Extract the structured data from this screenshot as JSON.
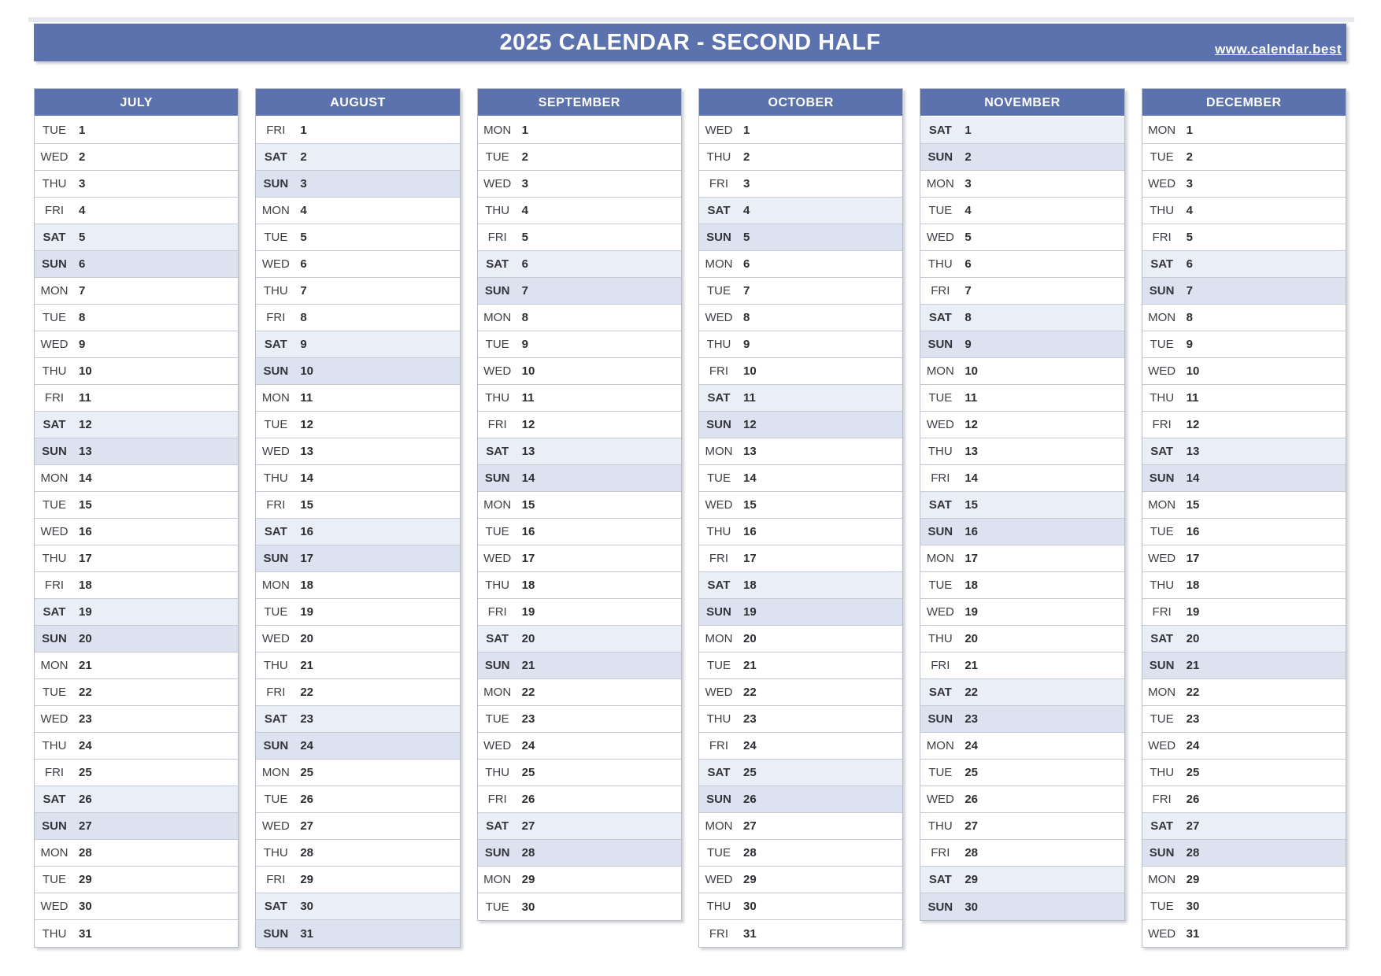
{
  "page": {
    "title": "2025 CALENDAR - SECOND HALF",
    "website": "www.calendar.best"
  },
  "colors": {
    "header_blue": "#5b72ae",
    "saturday_bg": "#eaeef7",
    "sunday_bg": "#dce2f0",
    "row_border": "#c6cad2",
    "table_border": "#b7bcc6",
    "title_text": "#ffffff"
  },
  "months": [
    {
      "name": "JULY",
      "rows": [
        {
          "dow": "TUE",
          "day": "1"
        },
        {
          "dow": "WED",
          "day": "2"
        },
        {
          "dow": "THU",
          "day": "3"
        },
        {
          "dow": "FRI",
          "day": "4"
        },
        {
          "dow": "SAT",
          "day": "5"
        },
        {
          "dow": "SUN",
          "day": "6"
        },
        {
          "dow": "MON",
          "day": "7"
        },
        {
          "dow": "TUE",
          "day": "8"
        },
        {
          "dow": "WED",
          "day": "9"
        },
        {
          "dow": "THU",
          "day": "10"
        },
        {
          "dow": "FRI",
          "day": "11"
        },
        {
          "dow": "SAT",
          "day": "12"
        },
        {
          "dow": "SUN",
          "day": "13"
        },
        {
          "dow": "MON",
          "day": "14"
        },
        {
          "dow": "TUE",
          "day": "15"
        },
        {
          "dow": "WED",
          "day": "16"
        },
        {
          "dow": "THU",
          "day": "17"
        },
        {
          "dow": "FRI",
          "day": "18"
        },
        {
          "dow": "SAT",
          "day": "19"
        },
        {
          "dow": "SUN",
          "day": "20"
        },
        {
          "dow": "MON",
          "day": "21"
        },
        {
          "dow": "TUE",
          "day": "22"
        },
        {
          "dow": "WED",
          "day": "23"
        },
        {
          "dow": "THU",
          "day": "24"
        },
        {
          "dow": "FRI",
          "day": "25"
        },
        {
          "dow": "SAT",
          "day": "26"
        },
        {
          "dow": "SUN",
          "day": "27"
        },
        {
          "dow": "MON",
          "day": "28"
        },
        {
          "dow": "TUE",
          "day": "29"
        },
        {
          "dow": "WED",
          "day": "30"
        },
        {
          "dow": "THU",
          "day": "31"
        }
      ]
    },
    {
      "name": "AUGUST",
      "rows": [
        {
          "dow": "FRI",
          "day": "1"
        },
        {
          "dow": "SAT",
          "day": "2"
        },
        {
          "dow": "SUN",
          "day": "3"
        },
        {
          "dow": "MON",
          "day": "4"
        },
        {
          "dow": "TUE",
          "day": "5"
        },
        {
          "dow": "WED",
          "day": "6"
        },
        {
          "dow": "THU",
          "day": "7"
        },
        {
          "dow": "FRI",
          "day": "8"
        },
        {
          "dow": "SAT",
          "day": "9"
        },
        {
          "dow": "SUN",
          "day": "10"
        },
        {
          "dow": "MON",
          "day": "11"
        },
        {
          "dow": "TUE",
          "day": "12"
        },
        {
          "dow": "WED",
          "day": "13"
        },
        {
          "dow": "THU",
          "day": "14"
        },
        {
          "dow": "FRI",
          "day": "15"
        },
        {
          "dow": "SAT",
          "day": "16"
        },
        {
          "dow": "SUN",
          "day": "17"
        },
        {
          "dow": "MON",
          "day": "18"
        },
        {
          "dow": "TUE",
          "day": "19"
        },
        {
          "dow": "WED",
          "day": "20"
        },
        {
          "dow": "THU",
          "day": "21"
        },
        {
          "dow": "FRI",
          "day": "22"
        },
        {
          "dow": "SAT",
          "day": "23"
        },
        {
          "dow": "SUN",
          "day": "24"
        },
        {
          "dow": "MON",
          "day": "25"
        },
        {
          "dow": "TUE",
          "day": "26"
        },
        {
          "dow": "WED",
          "day": "27"
        },
        {
          "dow": "THU",
          "day": "28"
        },
        {
          "dow": "FRI",
          "day": "29"
        },
        {
          "dow": "SAT",
          "day": "30"
        },
        {
          "dow": "SUN",
          "day": "31"
        }
      ]
    },
    {
      "name": "SEPTEMBER",
      "rows": [
        {
          "dow": "MON",
          "day": "1"
        },
        {
          "dow": "TUE",
          "day": "2"
        },
        {
          "dow": "WED",
          "day": "3"
        },
        {
          "dow": "THU",
          "day": "4"
        },
        {
          "dow": "FRI",
          "day": "5"
        },
        {
          "dow": "SAT",
          "day": "6"
        },
        {
          "dow": "SUN",
          "day": "7"
        },
        {
          "dow": "MON",
          "day": "8"
        },
        {
          "dow": "TUE",
          "day": "9"
        },
        {
          "dow": "WED",
          "day": "10"
        },
        {
          "dow": "THU",
          "day": "11"
        },
        {
          "dow": "FRI",
          "day": "12"
        },
        {
          "dow": "SAT",
          "day": "13"
        },
        {
          "dow": "SUN",
          "day": "14"
        },
        {
          "dow": "MON",
          "day": "15"
        },
        {
          "dow": "TUE",
          "day": "16"
        },
        {
          "dow": "WED",
          "day": "17"
        },
        {
          "dow": "THU",
          "day": "18"
        },
        {
          "dow": "FRI",
          "day": "19"
        },
        {
          "dow": "SAT",
          "day": "20"
        },
        {
          "dow": "SUN",
          "day": "21"
        },
        {
          "dow": "MON",
          "day": "22"
        },
        {
          "dow": "TUE",
          "day": "23"
        },
        {
          "dow": "WED",
          "day": "24"
        },
        {
          "dow": "THU",
          "day": "25"
        },
        {
          "dow": "FRI",
          "day": "26"
        },
        {
          "dow": "SAT",
          "day": "27"
        },
        {
          "dow": "SUN",
          "day": "28"
        },
        {
          "dow": "MON",
          "day": "29"
        },
        {
          "dow": "TUE",
          "day": "30"
        }
      ]
    },
    {
      "name": "OCTOBER",
      "rows": [
        {
          "dow": "WED",
          "day": "1"
        },
        {
          "dow": "THU",
          "day": "2"
        },
        {
          "dow": "FRI",
          "day": "3"
        },
        {
          "dow": "SAT",
          "day": "4"
        },
        {
          "dow": "SUN",
          "day": "5"
        },
        {
          "dow": "MON",
          "day": "6"
        },
        {
          "dow": "TUE",
          "day": "7"
        },
        {
          "dow": "WED",
          "day": "8"
        },
        {
          "dow": "THU",
          "day": "9"
        },
        {
          "dow": "FRI",
          "day": "10"
        },
        {
          "dow": "SAT",
          "day": "11"
        },
        {
          "dow": "SUN",
          "day": "12"
        },
        {
          "dow": "MON",
          "day": "13"
        },
        {
          "dow": "TUE",
          "day": "14"
        },
        {
          "dow": "WED",
          "day": "15"
        },
        {
          "dow": "THU",
          "day": "16"
        },
        {
          "dow": "FRI",
          "day": "17"
        },
        {
          "dow": "SAT",
          "day": "18"
        },
        {
          "dow": "SUN",
          "day": "19"
        },
        {
          "dow": "MON",
          "day": "20"
        },
        {
          "dow": "TUE",
          "day": "21"
        },
        {
          "dow": "WED",
          "day": "22"
        },
        {
          "dow": "THU",
          "day": "23"
        },
        {
          "dow": "FRI",
          "day": "24"
        },
        {
          "dow": "SAT",
          "day": "25"
        },
        {
          "dow": "SUN",
          "day": "26"
        },
        {
          "dow": "MON",
          "day": "27"
        },
        {
          "dow": "TUE",
          "day": "28"
        },
        {
          "dow": "WED",
          "day": "29"
        },
        {
          "dow": "THU",
          "day": "30"
        },
        {
          "dow": "FRI",
          "day": "31"
        }
      ]
    },
    {
      "name": "NOVEMBER",
      "rows": [
        {
          "dow": "SAT",
          "day": "1"
        },
        {
          "dow": "SUN",
          "day": "2"
        },
        {
          "dow": "MON",
          "day": "3"
        },
        {
          "dow": "TUE",
          "day": "4"
        },
        {
          "dow": "WED",
          "day": "5"
        },
        {
          "dow": "THU",
          "day": "6"
        },
        {
          "dow": "FRI",
          "day": "7"
        },
        {
          "dow": "SAT",
          "day": "8"
        },
        {
          "dow": "SUN",
          "day": "9"
        },
        {
          "dow": "MON",
          "day": "10"
        },
        {
          "dow": "TUE",
          "day": "11"
        },
        {
          "dow": "WED",
          "day": "12"
        },
        {
          "dow": "THU",
          "day": "13"
        },
        {
          "dow": "FRI",
          "day": "14"
        },
        {
          "dow": "SAT",
          "day": "15"
        },
        {
          "dow": "SUN",
          "day": "16"
        },
        {
          "dow": "MON",
          "day": "17"
        },
        {
          "dow": "TUE",
          "day": "18"
        },
        {
          "dow": "WED",
          "day": "19"
        },
        {
          "dow": "THU",
          "day": "20"
        },
        {
          "dow": "FRI",
          "day": "21"
        },
        {
          "dow": "SAT",
          "day": "22"
        },
        {
          "dow": "SUN",
          "day": "23"
        },
        {
          "dow": "MON",
          "day": "24"
        },
        {
          "dow": "TUE",
          "day": "25"
        },
        {
          "dow": "WED",
          "day": "26"
        },
        {
          "dow": "THU",
          "day": "27"
        },
        {
          "dow": "FRI",
          "day": "28"
        },
        {
          "dow": "SAT",
          "day": "29"
        },
        {
          "dow": "SUN",
          "day": "30"
        }
      ]
    },
    {
      "name": "DECEMBER",
      "rows": [
        {
          "dow": "MON",
          "day": "1"
        },
        {
          "dow": "TUE",
          "day": "2"
        },
        {
          "dow": "WED",
          "day": "3"
        },
        {
          "dow": "THU",
          "day": "4"
        },
        {
          "dow": "FRI",
          "day": "5"
        },
        {
          "dow": "SAT",
          "day": "6"
        },
        {
          "dow": "SUN",
          "day": "7"
        },
        {
          "dow": "MON",
          "day": "8"
        },
        {
          "dow": "TUE",
          "day": "9"
        },
        {
          "dow": "WED",
          "day": "10"
        },
        {
          "dow": "THU",
          "day": "11"
        },
        {
          "dow": "FRI",
          "day": "12"
        },
        {
          "dow": "SAT",
          "day": "13"
        },
        {
          "dow": "SUN",
          "day": "14"
        },
        {
          "dow": "MON",
          "day": "15"
        },
        {
          "dow": "TUE",
          "day": "16"
        },
        {
          "dow": "WED",
          "day": "17"
        },
        {
          "dow": "THU",
          "day": "18"
        },
        {
          "dow": "FRI",
          "day": "19"
        },
        {
          "dow": "SAT",
          "day": "20"
        },
        {
          "dow": "SUN",
          "day": "21"
        },
        {
          "dow": "MON",
          "day": "22"
        },
        {
          "dow": "TUE",
          "day": "23"
        },
        {
          "dow": "WED",
          "day": "24"
        },
        {
          "dow": "THU",
          "day": "25"
        },
        {
          "dow": "FRI",
          "day": "26"
        },
        {
          "dow": "SAT",
          "day": "27"
        },
        {
          "dow": "SUN",
          "day": "28"
        },
        {
          "dow": "MON",
          "day": "29"
        },
        {
          "dow": "TUE",
          "day": "30"
        },
        {
          "dow": "WED",
          "day": "31"
        }
      ]
    }
  ]
}
